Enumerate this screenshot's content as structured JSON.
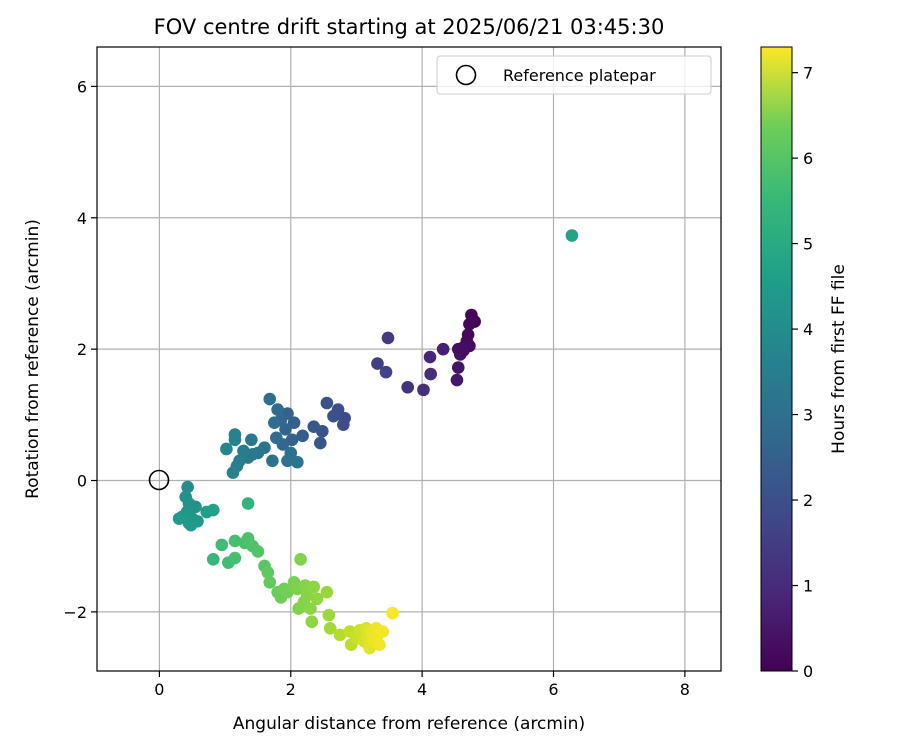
{
  "chart_data": {
    "type": "scatter",
    "title": "FOV centre drift starting at 2025/06/21 03:45:30",
    "xlabel": "Angular distance from reference (arcmin)",
    "ylabel": "Rotation from reference (arcmin)",
    "xlim": [
      -0.95,
      8.55
    ],
    "ylim": [
      -2.9,
      6.6
    ],
    "xticks": [
      0,
      2,
      4,
      6,
      8
    ],
    "xtick_labels": [
      "0",
      "2",
      "4",
      "6",
      "8"
    ],
    "yticks": [
      -2,
      0,
      2,
      4,
      6
    ],
    "ytick_labels": [
      "−2",
      "0",
      "2",
      "4",
      "6"
    ],
    "grid": true,
    "legend": {
      "position": "top-right",
      "entries": [
        "Reference platepar"
      ]
    },
    "colorbar": {
      "label": "Hours from first FF file",
      "colormap": "viridis",
      "range": [
        0,
        7.3
      ],
      "ticks": [
        0,
        1,
        2,
        3,
        4,
        5,
        6,
        7
      ],
      "tick_labels": [
        "0",
        "1",
        "2",
        "3",
        "4",
        "5",
        "6",
        "7"
      ]
    },
    "reference_point": {
      "x": 0,
      "y": 0,
      "name": "Reference platepar"
    },
    "points": [
      {
        "x": 4.75,
        "y": 2.52,
        "t": 0.05
      },
      {
        "x": 4.8,
        "y": 2.42,
        "t": 0.08
      },
      {
        "x": 4.72,
        "y": 2.38,
        "t": 0.12
      },
      {
        "x": 4.7,
        "y": 2.22,
        "t": 0.15
      },
      {
        "x": 4.68,
        "y": 2.12,
        "t": 0.18
      },
      {
        "x": 4.72,
        "y": 2.05,
        "t": 0.22
      },
      {
        "x": 4.62,
        "y": 2.02,
        "t": 0.25
      },
      {
        "x": 4.55,
        "y": 2.0,
        "t": 0.3
      },
      {
        "x": 4.58,
        "y": 1.92,
        "t": 0.35
      },
      {
        "x": 4.55,
        "y": 1.72,
        "t": 0.4
      },
      {
        "x": 4.53,
        "y": 1.53,
        "t": 0.45
      },
      {
        "x": 4.63,
        "y": 1.98,
        "t": 0.28
      },
      {
        "x": 4.32,
        "y": 2.0,
        "t": 0.65
      },
      {
        "x": 4.12,
        "y": 1.88,
        "t": 0.8
      },
      {
        "x": 4.13,
        "y": 1.62,
        "t": 0.9
      },
      {
        "x": 4.02,
        "y": 1.38,
        "t": 1.0
      },
      {
        "x": 3.78,
        "y": 1.42,
        "t": 1.1
      },
      {
        "x": 3.48,
        "y": 2.17,
        "t": 1.25
      },
      {
        "x": 3.32,
        "y": 1.78,
        "t": 1.35
      },
      {
        "x": 3.45,
        "y": 1.65,
        "t": 1.45
      },
      {
        "x": 2.82,
        "y": 0.95,
        "t": 1.65
      },
      {
        "x": 2.8,
        "y": 0.85,
        "t": 1.7
      },
      {
        "x": 2.72,
        "y": 1.08,
        "t": 1.75
      },
      {
        "x": 2.65,
        "y": 0.98,
        "t": 1.8
      },
      {
        "x": 2.55,
        "y": 1.18,
        "t": 1.85
      },
      {
        "x": 2.48,
        "y": 0.75,
        "t": 1.9
      },
      {
        "x": 2.45,
        "y": 0.57,
        "t": 1.95
      },
      {
        "x": 2.35,
        "y": 0.82,
        "t": 2.0
      },
      {
        "x": 2.18,
        "y": 0.68,
        "t": 2.1
      },
      {
        "x": 2.05,
        "y": 0.88,
        "t": 2.2
      },
      {
        "x": 2.02,
        "y": 0.62,
        "t": 2.25
      },
      {
        "x": 1.95,
        "y": 1.02,
        "t": 2.3
      },
      {
        "x": 1.92,
        "y": 0.78,
        "t": 2.35
      },
      {
        "x": 1.88,
        "y": 0.55,
        "t": 2.4
      },
      {
        "x": 1.85,
        "y": 0.92,
        "t": 2.45
      },
      {
        "x": 1.8,
        "y": 1.08,
        "t": 2.5
      },
      {
        "x": 1.75,
        "y": 0.88,
        "t": 2.55
      },
      {
        "x": 1.78,
        "y": 0.65,
        "t": 2.6
      },
      {
        "x": 1.68,
        "y": 1.24,
        "t": 2.65
      },
      {
        "x": 1.72,
        "y": 0.3,
        "t": 2.7
      },
      {
        "x": 1.95,
        "y": 0.3,
        "t": 2.75
      },
      {
        "x": 2.1,
        "y": 0.28,
        "t": 2.78
      },
      {
        "x": 2.0,
        "y": 0.42,
        "t": 2.72
      },
      {
        "x": 1.6,
        "y": 0.5,
        "t": 2.8
      },
      {
        "x": 1.5,
        "y": 0.42,
        "t": 2.85
      },
      {
        "x": 1.4,
        "y": 0.62,
        "t": 2.9
      },
      {
        "x": 1.42,
        "y": 0.4,
        "t": 2.95
      },
      {
        "x": 1.35,
        "y": 0.35,
        "t": 3.0
      },
      {
        "x": 1.28,
        "y": 0.45,
        "t": 3.05
      },
      {
        "x": 1.22,
        "y": 0.3,
        "t": 3.1
      },
      {
        "x": 1.18,
        "y": 0.22,
        "t": 3.15
      },
      {
        "x": 1.12,
        "y": 0.12,
        "t": 3.2
      },
      {
        "x": 1.15,
        "y": 0.62,
        "t": 3.22
      },
      {
        "x": 1.15,
        "y": 0.7,
        "t": 3.25
      },
      {
        "x": 1.02,
        "y": 0.48,
        "t": 3.3
      },
      {
        "x": 0.43,
        "y": -0.1,
        "t": 3.6
      },
      {
        "x": 0.4,
        "y": -0.25,
        "t": 3.65
      },
      {
        "x": 0.45,
        "y": -0.35,
        "t": 3.7
      },
      {
        "x": 0.55,
        "y": -0.4,
        "t": 3.75
      },
      {
        "x": 0.42,
        "y": -0.48,
        "t": 3.8
      },
      {
        "x": 0.5,
        "y": -0.58,
        "t": 3.85
      },
      {
        "x": 0.45,
        "y": -0.65,
        "t": 3.88
      },
      {
        "x": 0.58,
        "y": -0.62,
        "t": 3.9
      },
      {
        "x": 0.35,
        "y": -0.55,
        "t": 3.92
      },
      {
        "x": 0.3,
        "y": -0.58,
        "t": 3.95
      },
      {
        "x": 0.48,
        "y": -0.68,
        "t": 3.98
      },
      {
        "x": 0.72,
        "y": -0.48,
        "t": 4.05
      },
      {
        "x": 0.82,
        "y": -0.45,
        "t": 4.15
      },
      {
        "x": 6.28,
        "y": 3.73,
        "t": 4.25
      },
      {
        "x": 1.35,
        "y": -0.35,
        "t": 4.75
      },
      {
        "x": 0.82,
        "y": -1.2,
        "t": 4.9
      },
      {
        "x": 0.95,
        "y": -0.98,
        "t": 5.0
      },
      {
        "x": 1.05,
        "y": -1.25,
        "t": 5.05
      },
      {
        "x": 1.15,
        "y": -1.18,
        "t": 5.1
      },
      {
        "x": 1.15,
        "y": -0.92,
        "t": 5.12
      },
      {
        "x": 1.3,
        "y": -0.95,
        "t": 5.18
      },
      {
        "x": 1.35,
        "y": -0.88,
        "t": 5.2
      },
      {
        "x": 1.42,
        "y": -1.0,
        "t": 5.25
      },
      {
        "x": 1.5,
        "y": -1.08,
        "t": 5.3
      },
      {
        "x": 1.6,
        "y": -1.3,
        "t": 5.4
      },
      {
        "x": 1.65,
        "y": -1.4,
        "t": 5.45
      },
      {
        "x": 1.68,
        "y": -1.55,
        "t": 5.5
      },
      {
        "x": 1.8,
        "y": -1.7,
        "t": 5.6
      },
      {
        "x": 1.85,
        "y": -1.78,
        "t": 5.65
      },
      {
        "x": 1.9,
        "y": -1.65,
        "t": 5.7
      },
      {
        "x": 1.95,
        "y": -1.7,
        "t": 5.75
      },
      {
        "x": 2.05,
        "y": -1.55,
        "t": 5.8
      },
      {
        "x": 2.1,
        "y": -1.65,
        "t": 5.85
      },
      {
        "x": 2.12,
        "y": -1.95,
        "t": 5.88
      },
      {
        "x": 2.15,
        "y": -1.2,
        "t": 5.9
      },
      {
        "x": 2.2,
        "y": -1.85,
        "t": 5.92
      },
      {
        "x": 2.22,
        "y": -1.6,
        "t": 5.95
      },
      {
        "x": 2.25,
        "y": -1.75,
        "t": 5.98
      },
      {
        "x": 2.3,
        "y": -1.95,
        "t": 6.0
      },
      {
        "x": 2.32,
        "y": -2.15,
        "t": 6.05
      },
      {
        "x": 2.35,
        "y": -1.62,
        "t": 6.02
      },
      {
        "x": 2.4,
        "y": -1.8,
        "t": 6.08
      },
      {
        "x": 2.55,
        "y": -1.7,
        "t": 6.15
      },
      {
        "x": 2.58,
        "y": -2.05,
        "t": 6.2
      },
      {
        "x": 2.6,
        "y": -2.25,
        "t": 6.3
      },
      {
        "x": 2.75,
        "y": -2.35,
        "t": 6.45
      },
      {
        "x": 2.92,
        "y": -2.5,
        "t": 6.55
      },
      {
        "x": 2.9,
        "y": -2.3,
        "t": 6.6
      },
      {
        "x": 3.0,
        "y": -2.4,
        "t": 6.7
      },
      {
        "x": 3.05,
        "y": -2.28,
        "t": 6.75
      },
      {
        "x": 3.1,
        "y": -2.35,
        "t": 6.8
      },
      {
        "x": 3.12,
        "y": -2.45,
        "t": 6.85
      },
      {
        "x": 3.15,
        "y": -2.25,
        "t": 6.9
      },
      {
        "x": 3.18,
        "y": -2.4,
        "t": 6.95
      },
      {
        "x": 3.2,
        "y": -2.55,
        "t": 7.0
      },
      {
        "x": 3.22,
        "y": -2.3,
        "t": 7.05
      },
      {
        "x": 3.25,
        "y": -2.38,
        "t": 7.08
      },
      {
        "x": 3.28,
        "y": -2.45,
        "t": 7.1
      },
      {
        "x": 3.3,
        "y": -2.25,
        "t": 7.12
      },
      {
        "x": 3.32,
        "y": -2.35,
        "t": 7.15
      },
      {
        "x": 3.35,
        "y": -2.5,
        "t": 7.18
      },
      {
        "x": 3.4,
        "y": -2.3,
        "t": 7.2
      },
      {
        "x": 3.55,
        "y": -2.02,
        "t": 7.25
      }
    ]
  }
}
